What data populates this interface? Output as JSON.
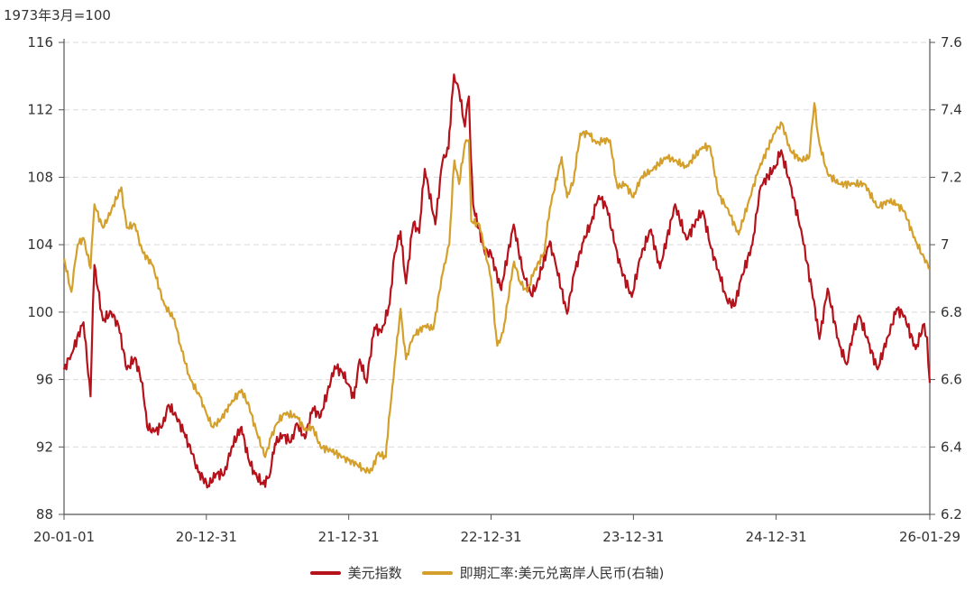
{
  "chart_data": {
    "type": "line",
    "unit_label": "1973年3月=100",
    "x_ticks": [
      "20-01-01",
      "20-12-31",
      "21-12-31",
      "22-12-31",
      "23-12-31",
      "24-12-31",
      "26-01-29"
    ],
    "y_left": {
      "ylim": [
        88,
        116
      ],
      "ticks": [
        88,
        92,
        96,
        100,
        104,
        108,
        112,
        116
      ]
    },
    "y_right": {
      "ylim": [
        6.2,
        7.6
      ],
      "ticks": [
        "6.2",
        "6.4",
        "6.6",
        "6.8",
        "7",
        "7.2",
        "7.4",
        "7.6"
      ]
    },
    "grid": true,
    "legend_position": "bottom",
    "series": [
      {
        "name": "美元指数",
        "axis": "left",
        "color": "#b5121b",
        "points": [
          [
            "2020-01-01",
            96.6
          ],
          [
            "2020-01-20",
            97.5
          ],
          [
            "2020-02-20",
            99.4
          ],
          [
            "2020-03-09",
            95.0
          ],
          [
            "2020-03-19",
            102.8
          ],
          [
            "2020-04-10",
            99.5
          ],
          [
            "2020-05-01",
            100.0
          ],
          [
            "2020-05-20",
            99.2
          ],
          [
            "2020-06-10",
            96.6
          ],
          [
            "2020-07-01",
            97.3
          ],
          [
            "2020-07-20",
            95.8
          ],
          [
            "2020-08-01",
            93.2
          ],
          [
            "2020-08-20",
            92.9
          ],
          [
            "2020-09-10",
            93.3
          ],
          [
            "2020-09-25",
            94.5
          ],
          [
            "2020-10-15",
            93.8
          ],
          [
            "2020-11-05",
            92.8
          ],
          [
            "2020-11-25",
            91.6
          ],
          [
            "2020-12-10",
            90.5
          ],
          [
            "2020-12-31",
            89.9
          ],
          [
            "2021-01-05",
            89.7
          ],
          [
            "2021-01-25",
            90.4
          ],
          [
            "2021-02-15",
            90.4
          ],
          [
            "2021-03-05",
            91.9
          ],
          [
            "2021-03-31",
            93.2
          ],
          [
            "2021-04-20",
            91.1
          ],
          [
            "2021-05-05",
            90.4
          ],
          [
            "2021-05-25",
            89.8
          ],
          [
            "2021-06-10",
            90.2
          ],
          [
            "2021-06-25",
            92.2
          ],
          [
            "2021-07-15",
            92.7
          ],
          [
            "2021-08-05",
            92.3
          ],
          [
            "2021-08-20",
            93.4
          ],
          [
            "2021-09-10",
            92.5
          ],
          [
            "2021-09-30",
            94.3
          ],
          [
            "2021-10-20",
            93.8
          ],
          [
            "2021-11-15",
            95.9
          ],
          [
            "2021-11-25",
            96.8
          ],
          [
            "2021-12-15",
            96.4
          ],
          [
            "2021-12-31",
            95.7
          ],
          [
            "2022-01-14",
            94.9
          ],
          [
            "2022-01-28",
            97.2
          ],
          [
            "2022-02-15",
            95.8
          ],
          [
            "2022-03-07",
            99.1
          ],
          [
            "2022-03-25",
            98.8
          ],
          [
            "2022-04-15",
            100.5
          ],
          [
            "2022-04-28",
            103.5
          ],
          [
            "2022-05-13",
            104.8
          ],
          [
            "2022-05-27",
            101.7
          ],
          [
            "2022-06-15",
            105.3
          ],
          [
            "2022-06-30",
            104.7
          ],
          [
            "2022-07-14",
            108.5
          ],
          [
            "2022-08-10",
            105.2
          ],
          [
            "2022-08-29",
            109.0
          ],
          [
            "2022-09-13",
            109.7
          ],
          [
            "2022-09-27",
            114.1
          ],
          [
            "2022-10-10",
            113.1
          ],
          [
            "2022-10-25",
            111.0
          ],
          [
            "2022-11-04",
            112.8
          ],
          [
            "2022-11-15",
            106.4
          ],
          [
            "2022-12-14",
            103.6
          ],
          [
            "2022-12-31",
            103.5
          ],
          [
            "2023-01-26",
            101.3
          ],
          [
            "2023-02-27",
            105.2
          ],
          [
            "2023-03-23",
            102.3
          ],
          [
            "2023-04-13",
            101.0
          ],
          [
            "2023-04-26",
            101.5
          ],
          [
            "2023-05-31",
            104.2
          ],
          [
            "2023-06-14",
            102.9
          ],
          [
            "2023-07-14",
            99.9
          ],
          [
            "2023-08-01",
            102.3
          ],
          [
            "2023-08-25",
            104.2
          ],
          [
            "2023-09-14",
            105.3
          ],
          [
            "2023-10-03",
            106.9
          ],
          [
            "2023-10-24",
            106.2
          ],
          [
            "2023-11-14",
            104.0
          ],
          [
            "2023-11-28",
            102.7
          ],
          [
            "2023-12-27",
            100.9
          ],
          [
            "2024-01-17",
            103.2
          ],
          [
            "2024-02-14",
            104.9
          ],
          [
            "2024-03-08",
            102.6
          ],
          [
            "2024-04-16",
            106.4
          ],
          [
            "2024-05-15",
            104.3
          ],
          [
            "2024-06-11",
            105.5
          ],
          [
            "2024-06-26",
            106.0
          ],
          [
            "2024-07-17",
            103.8
          ],
          [
            "2024-08-05",
            102.5
          ],
          [
            "2024-08-27",
            100.7
          ],
          [
            "2024-09-17",
            100.4
          ],
          [
            "2024-10-01",
            101.9
          ],
          [
            "2024-10-31",
            104.0
          ],
          [
            "2024-11-22",
            107.5
          ],
          [
            "2024-12-31",
            108.7
          ],
          [
            "2025-01-13",
            109.6
          ],
          [
            "2025-02-05",
            107.6
          ],
          [
            "2025-03-05",
            104.9
          ],
          [
            "2025-04-10",
            100.2
          ],
          [
            "2025-04-21",
            98.4
          ],
          [
            "2025-05-12",
            101.4
          ],
          [
            "2025-06-12",
            98.0
          ],
          [
            "2025-06-30",
            96.9
          ],
          [
            "2025-07-15",
            98.6
          ],
          [
            "2025-08-01",
            99.8
          ],
          [
            "2025-08-25",
            98.2
          ],
          [
            "2025-09-17",
            96.6
          ],
          [
            "2025-10-15",
            98.6
          ],
          [
            "2025-11-05",
            100.2
          ],
          [
            "2025-11-25",
            99.8
          ],
          [
            "2025-12-24",
            97.8
          ],
          [
            "2026-01-15",
            99.3
          ],
          [
            "2026-01-22",
            98.5
          ],
          [
            "2026-01-29",
            95.8
          ]
        ]
      },
      {
        "name": "即期汇率:美元兑离岸人民币(右轴)",
        "axis": "right",
        "color": "#d4a02b",
        "points": [
          [
            "2020-01-01",
            6.96
          ],
          [
            "2020-01-20",
            6.86
          ],
          [
            "2020-02-05",
            7.0
          ],
          [
            "2020-02-20",
            7.02
          ],
          [
            "2020-03-09",
            6.93
          ],
          [
            "2020-03-19",
            7.12
          ],
          [
            "2020-04-10",
            7.05
          ],
          [
            "2020-05-01",
            7.1
          ],
          [
            "2020-05-27",
            7.17
          ],
          [
            "2020-06-10",
            7.05
          ],
          [
            "2020-07-01",
            7.06
          ],
          [
            "2020-07-20",
            6.98
          ],
          [
            "2020-08-15",
            6.94
          ],
          [
            "2020-09-15",
            6.82
          ],
          [
            "2020-10-10",
            6.78
          ],
          [
            "2020-10-26",
            6.7
          ],
          [
            "2020-11-20",
            6.6
          ],
          [
            "2020-12-15",
            6.55
          ],
          [
            "2020-12-31",
            6.5
          ],
          [
            "2021-01-15",
            6.46
          ],
          [
            "2021-02-05",
            6.48
          ],
          [
            "2021-03-05",
            6.53
          ],
          [
            "2021-03-31",
            6.57
          ],
          [
            "2021-04-20",
            6.52
          ],
          [
            "2021-05-10",
            6.44
          ],
          [
            "2021-05-31",
            6.37
          ],
          [
            "2021-06-15",
            6.43
          ],
          [
            "2021-06-30",
            6.47
          ],
          [
            "2021-07-20",
            6.5
          ],
          [
            "2021-08-20",
            6.49
          ],
          [
            "2021-09-10",
            6.45
          ],
          [
            "2021-09-30",
            6.46
          ],
          [
            "2021-10-20",
            6.4
          ],
          [
            "2021-11-15",
            6.39
          ],
          [
            "2021-12-15",
            6.37
          ],
          [
            "2021-12-31",
            6.36
          ],
          [
            "2022-01-20",
            6.35
          ],
          [
            "2022-02-10",
            6.33
          ],
          [
            "2022-03-01",
            6.33
          ],
          [
            "2022-03-15",
            6.38
          ],
          [
            "2022-04-05",
            6.37
          ],
          [
            "2022-04-22",
            6.58
          ],
          [
            "2022-04-28",
            6.65
          ],
          [
            "2022-05-13",
            6.81
          ],
          [
            "2022-05-27",
            6.66
          ],
          [
            "2022-06-15",
            6.73
          ],
          [
            "2022-07-15",
            6.76
          ],
          [
            "2022-08-05",
            6.75
          ],
          [
            "2022-08-30",
            6.92
          ],
          [
            "2022-09-15",
            7.0
          ],
          [
            "2022-09-28",
            7.25
          ],
          [
            "2022-10-10",
            7.18
          ],
          [
            "2022-10-25",
            7.3
          ],
          [
            "2022-11-04",
            7.31
          ],
          [
            "2022-11-10",
            7.07
          ],
          [
            "2022-12-01",
            7.06
          ],
          [
            "2022-12-31",
            6.9
          ],
          [
            "2023-01-16",
            6.7
          ],
          [
            "2023-01-31",
            6.74
          ],
          [
            "2023-02-28",
            6.95
          ],
          [
            "2023-03-15",
            6.89
          ],
          [
            "2023-04-03",
            6.86
          ],
          [
            "2023-04-20",
            6.92
          ],
          [
            "2023-05-17",
            6.98
          ],
          [
            "2023-05-31",
            7.11
          ],
          [
            "2023-06-30",
            7.26
          ],
          [
            "2023-07-14",
            7.14
          ],
          [
            "2023-07-31",
            7.19
          ],
          [
            "2023-08-17",
            7.33
          ],
          [
            "2023-09-08",
            7.33
          ],
          [
            "2023-09-27",
            7.3
          ],
          [
            "2023-10-15",
            7.31
          ],
          [
            "2023-11-01",
            7.31
          ],
          [
            "2023-11-20",
            7.17
          ],
          [
            "2023-12-10",
            7.18
          ],
          [
            "2023-12-31",
            7.14
          ],
          [
            "2024-01-20",
            7.2
          ],
          [
            "2024-02-15",
            7.22
          ],
          [
            "2024-03-25",
            7.26
          ],
          [
            "2024-04-15",
            7.25
          ],
          [
            "2024-05-15",
            7.23
          ],
          [
            "2024-06-25",
            7.29
          ],
          [
            "2024-07-15",
            7.29
          ],
          [
            "2024-08-05",
            7.15
          ],
          [
            "2024-08-27",
            7.11
          ],
          [
            "2024-09-26",
            7.03
          ],
          [
            "2024-10-25",
            7.14
          ],
          [
            "2024-11-15",
            7.22
          ],
          [
            "2024-12-31",
            7.34
          ],
          [
            "2025-01-15",
            7.36
          ],
          [
            "2025-02-05",
            7.28
          ],
          [
            "2025-03-05",
            7.25
          ],
          [
            "2025-03-26",
            7.26
          ],
          [
            "2025-04-08",
            7.42
          ],
          [
            "2025-04-21",
            7.3
          ],
          [
            "2025-05-12",
            7.21
          ],
          [
            "2025-06-12",
            7.18
          ],
          [
            "2025-07-15",
            7.18
          ],
          [
            "2025-08-15",
            7.18
          ],
          [
            "2025-09-17",
            7.11
          ],
          [
            "2025-10-15",
            7.13
          ],
          [
            "2025-11-05",
            7.12
          ],
          [
            "2025-11-25",
            7.1
          ],
          [
            "2025-12-24",
            7.01
          ],
          [
            "2026-01-15",
            6.96
          ],
          [
            "2026-01-29",
            6.93
          ]
        ]
      }
    ]
  }
}
